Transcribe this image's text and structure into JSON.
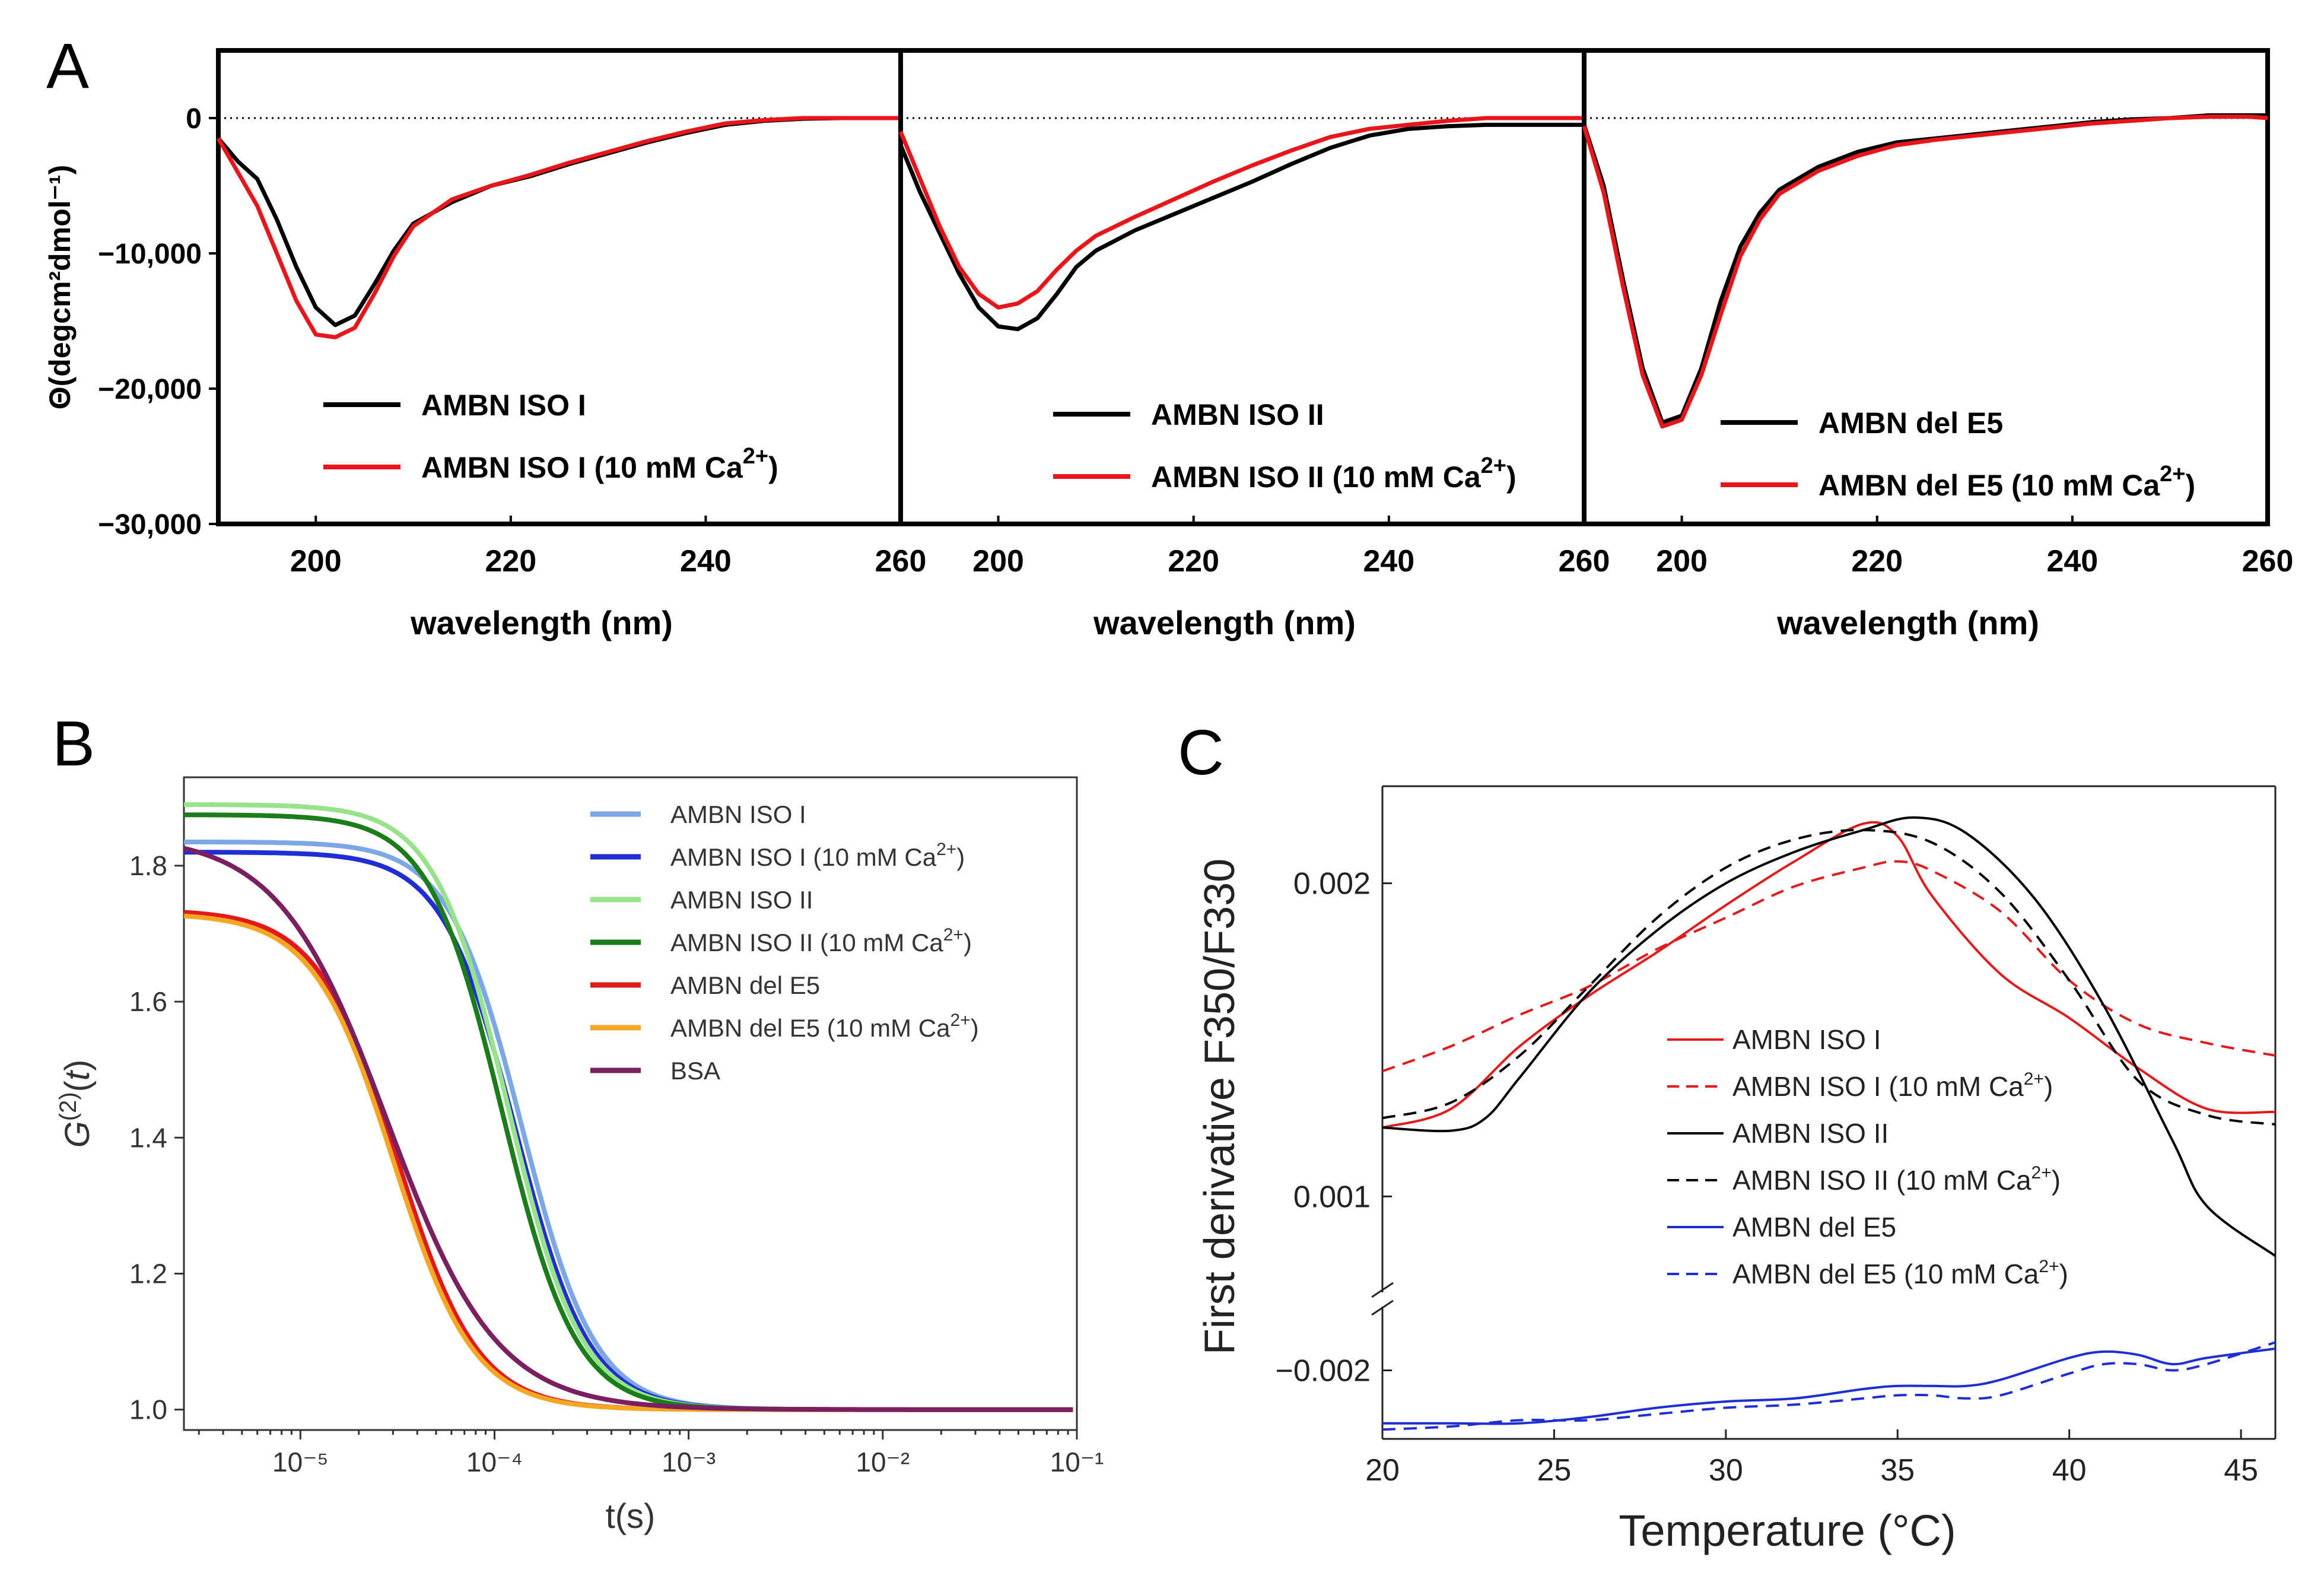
{
  "panel_letters": {
    "a": "A",
    "b": "B",
    "c": "C"
  },
  "chart_data": [
    {
      "id": "A",
      "type": "line",
      "title": "",
      "ylabel": "Θ(degcm²dmol⁻¹)",
      "ylim": [
        -30000,
        5000
      ],
      "yticks": [
        0,
        -10000,
        -20000,
        -30000
      ],
      "ytick_labels": [
        "0",
        "−10,000",
        "−20,000",
        "−30,000"
      ],
      "zero_line": true,
      "subplots": [
        {
          "xlabel": "wavelength (nm)",
          "xlim": [
            190,
            260
          ],
          "xticks": [
            200,
            220,
            240,
            260
          ],
          "xtick_labels": [
            "200",
            "220",
            "240",
            "260"
          ],
          "series": [
            {
              "name": "AMBN ISO I",
              "color": "#000000",
              "x": [
                190,
                192,
                194,
                196,
                198,
                200,
                202,
                204,
                206,
                208,
                210,
                214,
                218,
                222,
                226,
                230,
                234,
                238,
                242,
                246,
                250,
                254,
                258,
                260
              ],
              "y": [
                -1500,
                -3200,
                -4500,
                -7500,
                -11000,
                -14000,
                -15300,
                -14600,
                -12300,
                -9800,
                -7800,
                -6200,
                -5000,
                -4300,
                -3400,
                -2600,
                -1800,
                -1100,
                -500,
                -200,
                -50,
                0,
                0,
                0
              ]
            },
            {
              "name": "AMBN ISO I (10 mM Ca²⁺)",
              "color": "#e8161b",
              "x": [
                190,
                192,
                194,
                196,
                198,
                200,
                202,
                204,
                206,
                208,
                210,
                214,
                218,
                222,
                226,
                230,
                234,
                238,
                242,
                246,
                250,
                254,
                258,
                260
              ],
              "y": [
                -1500,
                -4000,
                -6500,
                -10000,
                -13500,
                -16000,
                -16200,
                -15500,
                -13000,
                -10200,
                -8000,
                -6000,
                -5000,
                -4200,
                -3300,
                -2500,
                -1700,
                -1000,
                -400,
                -150,
                0,
                0,
                0,
                0
              ]
            }
          ],
          "legend": [
            "AMBN ISO I",
            "AMBN ISO I (10 mM Ca",
            "2+",
            ")"
          ]
        },
        {
          "xlabel": "wavelength (nm)",
          "xlim": [
            190,
            260
          ],
          "xticks": [
            200,
            220,
            240,
            260
          ],
          "xtick_labels": [
            "200",
            "220",
            "240",
            "260"
          ],
          "series": [
            {
              "name": "AMBN ISO II",
              "color": "#000000",
              "x": [
                190,
                192,
                194,
                196,
                198,
                200,
                202,
                204,
                206,
                208,
                210,
                214,
                218,
                222,
                226,
                230,
                234,
                238,
                242,
                246,
                250,
                254,
                258,
                260
              ],
              "y": [
                -2000,
                -5500,
                -8500,
                -11500,
                -14000,
                -15400,
                -15600,
                -14800,
                -13000,
                -11000,
                -9800,
                -8300,
                -7100,
                -5900,
                -4700,
                -3400,
                -2200,
                -1300,
                -800,
                -600,
                -500,
                -500,
                -500,
                -500
              ]
            },
            {
              "name": "AMBN ISO II (10 mM Ca²⁺)",
              "color": "#e8161b",
              "x": [
                190,
                192,
                194,
                196,
                198,
                200,
                202,
                204,
                206,
                208,
                210,
                214,
                218,
                222,
                226,
                230,
                234,
                238,
                242,
                246,
                250,
                254,
                258,
                260
              ],
              "y": [
                -1000,
                -4500,
                -8000,
                -11000,
                -13000,
                -14000,
                -13700,
                -12800,
                -11200,
                -9800,
                -8700,
                -7300,
                -6000,
                -4700,
                -3500,
                -2400,
                -1400,
                -800,
                -500,
                -200,
                0,
                0,
                0,
                0
              ]
            }
          ],
          "legend": [
            "AMBN ISO II",
            "AMBN ISO II (10 mM Ca",
            "2+",
            ")"
          ]
        },
        {
          "xlabel": "wavelength (nm)",
          "xlim": [
            190,
            260
          ],
          "xticks": [
            200,
            220,
            240,
            260
          ],
          "xtick_labels": [
            "200",
            "220",
            "240",
            "260"
          ],
          "series": [
            {
              "name": "AMBN del E5",
              "color": "#000000",
              "x": [
                190,
                192,
                194,
                196,
                198,
                200,
                202,
                204,
                206,
                208,
                210,
                214,
                218,
                222,
                226,
                230,
                234,
                238,
                242,
                246,
                250,
                254,
                258,
                260
              ],
              "y": [
                -500,
                -5000,
                -12000,
                -18500,
                -22500,
                -22000,
                -18500,
                -13500,
                -9500,
                -7000,
                -5300,
                -3600,
                -2500,
                -1800,
                -1500,
                -1200,
                -900,
                -600,
                -300,
                -100,
                0,
                200,
                200,
                200
              ]
            },
            {
              "name": "AMBN del E5 (10 mM Ca²⁺)",
              "color": "#e8161b",
              "x": [
                190,
                192,
                194,
                196,
                198,
                200,
                202,
                204,
                206,
                208,
                210,
                214,
                218,
                222,
                226,
                230,
                234,
                238,
                242,
                246,
                250,
                254,
                258,
                260
              ],
              "y": [
                -600,
                -5500,
                -12500,
                -19000,
                -22800,
                -22300,
                -19000,
                -14500,
                -10200,
                -7500,
                -5600,
                -3900,
                -2800,
                -2000,
                -1600,
                -1300,
                -1000,
                -700,
                -400,
                -200,
                0,
                100,
                100,
                0
              ]
            }
          ],
          "legend": [
            "AMBN del E5",
            "AMBN del E5 (10 mM Ca",
            "2+",
            ")"
          ]
        }
      ]
    },
    {
      "id": "B",
      "type": "line",
      "xscale": "log",
      "xlabel": "t(s)",
      "ylabel": "G(2)(t)",
      "xlim_log10": [
        -5.6,
        -1
      ],
      "ylim": [
        0.97,
        1.93
      ],
      "xticks_log10": [
        -5,
        -4,
        -3,
        -2,
        -1
      ],
      "xtick_labels": [
        "10⁻⁵",
        "10⁻⁴",
        "10⁻³",
        "10⁻²",
        "10⁻¹"
      ],
      "yticks": [
        1.0,
        1.2,
        1.4,
        1.6,
        1.8
      ],
      "ytick_labels": [
        "1.0",
        "1.2",
        "1.4",
        "1.6",
        "1.8"
      ],
      "legend_position": "top-right",
      "series": [
        {
          "name": "AMBN ISO I",
          "color": "#7ba7e6",
          "baseline": 1.0,
          "amplitude": 0.835,
          "tau_log10": -3.86,
          "slope": 2.3
        },
        {
          "name": "AMBN ISO I (10 mM Ca²⁺)",
          "color": "#1f2ed4",
          "baseline": 1.0,
          "amplitude": 0.82,
          "tau_log10": -3.89,
          "slope": 2.3
        },
        {
          "name": "AMBN ISO II",
          "color": "#98e28c",
          "baseline": 1.0,
          "amplitude": 0.89,
          "tau_log10": -3.93,
          "slope": 2.3
        },
        {
          "name": "AMBN ISO II (10 mM Ca²⁺)",
          "color": "#1a7d1a",
          "baseline": 1.0,
          "amplitude": 0.875,
          "tau_log10": -3.96,
          "slope": 2.3
        },
        {
          "name": "AMBN del E5",
          "color": "#e31a1c",
          "baseline": 1.0,
          "amplitude": 0.735,
          "tau_log10": -4.5,
          "slope": 2.1
        },
        {
          "name": "AMBN del E5 (10 mM Ca²⁺)",
          "color": "#f5a623",
          "baseline": 1.0,
          "amplitude": 0.73,
          "tau_log10": -4.52,
          "slope": 2.1
        },
        {
          "name": "BSA",
          "color": "#7a1f60",
          "baseline": 1.0,
          "amplitude": 0.845,
          "tau_log10": -4.55,
          "slope": 1.55
        }
      ],
      "legend_items": [
        {
          "base": "AMBN ISO I",
          "ca": ""
        },
        {
          "base": "AMBN ISO I (10 mM Ca",
          "ca": "2+",
          "end": ")"
        },
        {
          "base": "AMBN ISO II",
          "ca": ""
        },
        {
          "base": "AMBN ISO II (10 mM Ca",
          "ca": "2+",
          "end": ")"
        },
        {
          "base": "AMBN del E5",
          "ca": ""
        },
        {
          "base": "AMBN del E5 (10 mM Ca",
          "ca": "2+",
          "end": ")"
        },
        {
          "base": "BSA",
          "ca": ""
        }
      ]
    },
    {
      "id": "C",
      "type": "line",
      "xlabel": "Temperature (°C)",
      "ylabel": "First derivative F350/F330",
      "xlim": [
        20,
        46
      ],
      "xticks": [
        20,
        25,
        30,
        35,
        40,
        45
      ],
      "xtick_labels": [
        "20",
        "25",
        "30",
        "35",
        "40",
        "45"
      ],
      "ytick_labels": [
        "0.002",
        "0.001",
        "−0.002"
      ],
      "broken_axis": true,
      "upper": {
        "ylim": [
          0.00069,
          0.00231
        ],
        "yticks": [
          0.002,
          0.001
        ],
        "series": [
          {
            "name": "AMBN ISO I",
            "color": "#e31a1c",
            "dash": "solid",
            "x": [
              20,
              22,
              24,
              26,
              28,
              30,
              32,
              34,
              35,
              36,
              38,
              40,
              42,
              44,
              46
            ],
            "y": [
              0.00122,
              0.00128,
              0.00148,
              0.00164,
              0.00178,
              0.00193,
              0.00207,
              0.00219,
              0.00215,
              0.00196,
              0.00171,
              0.00157,
              0.00141,
              0.00128,
              0.00127
            ]
          },
          {
            "name": "AMBN ISO I (10 mM Ca²⁺)",
            "color": "#e31a1c",
            "dash": "dashed",
            "x": [
              20,
              22,
              24,
              26,
              28,
              30,
              32,
              34,
              35,
              36,
              38,
              40,
              42,
              44,
              46
            ],
            "y": [
              0.0014,
              0.00148,
              0.00158,
              0.00167,
              0.00179,
              0.00189,
              0.00199,
              0.00205,
              0.00207,
              0.00204,
              0.00191,
              0.00169,
              0.00155,
              0.00149,
              0.00145
            ]
          },
          {
            "name": "AMBN ISO II",
            "color": "#000000",
            "dash": "solid",
            "x": [
              20,
              22,
              23,
              24,
              26,
              28,
              30,
              32,
              34,
              35.5,
              37,
              39,
              41,
              43,
              44,
              46
            ],
            "y": [
              0.00122,
              0.00121,
              0.00125,
              0.00138,
              0.00165,
              0.00185,
              0.002,
              0.0021,
              0.00217,
              0.00221,
              0.00216,
              0.00195,
              0.00161,
              0.00118,
              0.00097,
              0.00081
            ]
          },
          {
            "name": "AMBN ISO II (10 mM Ca²⁺)",
            "color": "#000000",
            "dash": "dashed",
            "x": [
              20,
              22,
              24,
              26,
              28,
              30,
              32,
              34,
              36,
              38,
              40,
              42,
              44,
              46
            ],
            "y": [
              0.00125,
              0.0013,
              0.00145,
              0.00167,
              0.00189,
              0.00205,
              0.00214,
              0.00217,
              0.00213,
              0.00197,
              0.00169,
              0.00137,
              0.00126,
              0.00123
            ]
          }
        ]
      },
      "lower": {
        "ylim": [
          -0.00222,
          -0.00182
        ],
        "yticks": [
          -0.002
        ],
        "series": [
          {
            "name": "AMBN del E5",
            "color": "#1f2ed4",
            "dash": "solid",
            "x": [
              20,
              22,
              24,
              26,
              28,
              30,
              32,
              34,
              35,
              36,
              37,
              38,
              40,
              41,
              42,
              43,
              44,
              46
            ],
            "y": [
              -0.00217,
              -0.00217,
              -0.00217,
              -0.00215,
              -0.00212,
              -0.0021,
              -0.00209,
              -0.00206,
              -0.00205,
              -0.00205,
              -0.00205,
              -0.00203,
              -0.00196,
              -0.00194,
              -0.00195,
              -0.00198,
              -0.00196,
              -0.00193
            ]
          },
          {
            "name": "AMBN del E5 (10 mM Ca²⁺)",
            "color": "#1f2ed4",
            "dash": "dashed",
            "x": [
              20,
              22,
              24,
              26,
              28,
              30,
              32,
              34,
              35,
              36,
              37,
              38,
              40,
              41,
              42,
              43,
              44,
              46
            ],
            "y": [
              -0.00219,
              -0.00218,
              -0.00216,
              -0.00216,
              -0.00214,
              -0.00212,
              -0.00211,
              -0.00209,
              -0.00208,
              -0.00208,
              -0.00209,
              -0.00208,
              -0.00201,
              -0.00198,
              -0.00198,
              -0.002,
              -0.00198,
              -0.00191
            ]
          }
        ]
      },
      "legend_items": [
        {
          "base": "AMBN ISO I",
          "ca": ""
        },
        {
          "base": "AMBN ISO I (10 mM Ca",
          "ca": "2+",
          "end": ")"
        },
        {
          "base": "AMBN ISO II",
          "ca": ""
        },
        {
          "base": "AMBN ISO II (10 mM Ca",
          "ca": "2+",
          "end": ")"
        },
        {
          "base": "AMBN del E5",
          "ca": ""
        },
        {
          "base": "AMBN del E5 (10 mM Ca",
          "ca": "2+",
          "end": ")"
        }
      ]
    }
  ]
}
